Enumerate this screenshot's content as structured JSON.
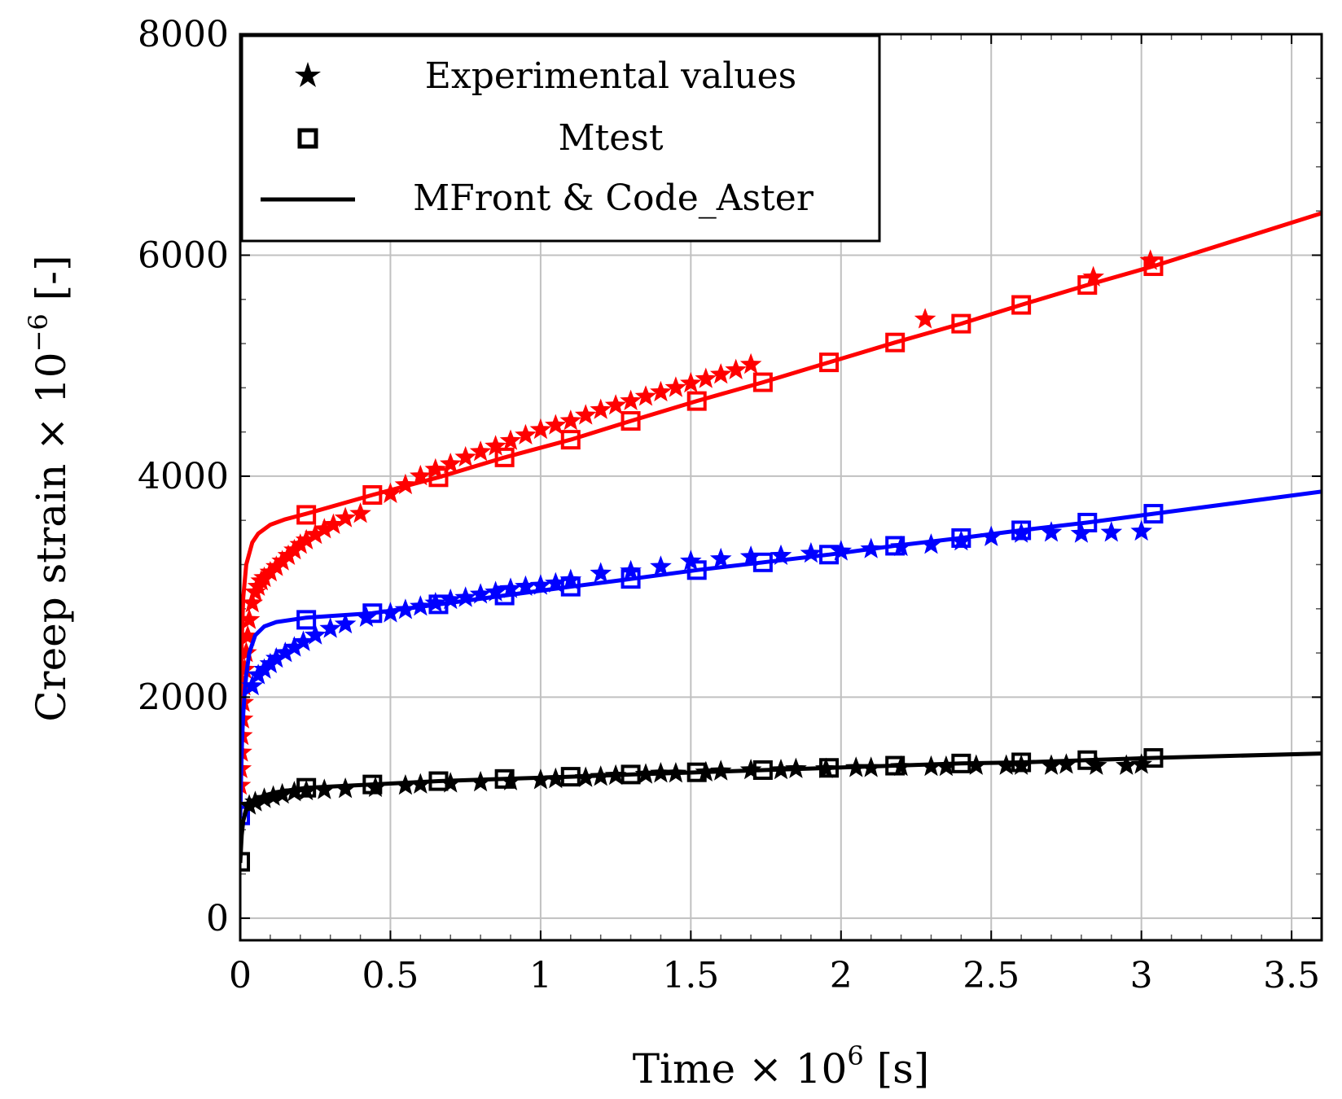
{
  "chart_data": {
    "type": "line",
    "title": "",
    "xlabel_parts": {
      "main": "Time × 10",
      "sup": "6",
      "unit": " [s]"
    },
    "ylabel_parts": {
      "main": "Creep strain × 10",
      "sup": "−6",
      "unit": " [-]"
    },
    "xlim": [
      0,
      3.6
    ],
    "ylim": [
      -200,
      8000
    ],
    "x_ticks": [
      0,
      0.5,
      1,
      1.5,
      2,
      2.5,
      3,
      3.5
    ],
    "x_tick_labels": [
      "0",
      "0.5",
      "1",
      "1.5",
      "2",
      "2.5",
      "3",
      "3.5"
    ],
    "y_ticks": [
      0,
      2000,
      4000,
      6000,
      8000
    ],
    "y_tick_labels": [
      "0",
      "2000",
      "4000",
      "6000",
      "8000"
    ],
    "grid": true,
    "legend": {
      "placement": "top-left",
      "entries": [
        {
          "label": "Experimental values",
          "marker": "star"
        },
        {
          "label": "Mtest",
          "marker": "square"
        },
        {
          "label": "MFront & Code_Aster",
          "marker": "line"
        }
      ]
    },
    "colors": {
      "red": "#ff0000",
      "blue": "#0000ff",
      "black": "#000000"
    },
    "series": [
      {
        "name": "red",
        "color": "#ff0000",
        "model_curve": {
          "x": [
            0,
            0.005,
            0.01,
            0.02,
            0.04,
            0.06,
            0.1,
            0.15,
            0.22,
            0.44,
            0.66,
            0.88,
            1.1,
            1.3,
            1.52,
            1.74,
            1.96,
            2.18,
            2.4,
            2.6,
            2.82,
            3.04,
            3.6
          ],
          "y": [
            1000,
            2500,
            2900,
            3200,
            3400,
            3480,
            3560,
            3610,
            3660,
            3830,
            3990,
            4170,
            4330,
            4500,
            4680,
            4850,
            5030,
            5210,
            5380,
            5550,
            5730,
            5900,
            6380
          ]
        },
        "mtest": {
          "x": [
            0.22,
            0.44,
            0.66,
            0.88,
            1.1,
            1.3,
            1.52,
            1.74,
            1.96,
            2.18,
            2.4,
            2.6,
            2.82,
            3.04
          ],
          "y": [
            3650,
            3830,
            3990,
            4170,
            4330,
            4500,
            4680,
            4850,
            5030,
            5210,
            5380,
            5550,
            5730,
            5900
          ]
        },
        "experimental": {
          "x": [
            0.0,
            0.002,
            0.004,
            0.006,
            0.008,
            0.01,
            0.012,
            0.015,
            0.02,
            0.025,
            0.03,
            0.04,
            0.05,
            0.06,
            0.07,
            0.08,
            0.1,
            0.12,
            0.14,
            0.16,
            0.18,
            0.2,
            0.22,
            0.25,
            0.28,
            0.31,
            0.35,
            0.4,
            0.5,
            0.55,
            0.6,
            0.65,
            0.7,
            0.75,
            0.8,
            0.85,
            0.9,
            0.95,
            1.0,
            1.05,
            1.1,
            1.15,
            1.2,
            1.25,
            1.3,
            1.35,
            1.4,
            1.45,
            1.5,
            1.55,
            1.6,
            1.65,
            1.7,
            2.28,
            2.84,
            3.03
          ],
          "y": [
            1200,
            1350,
            1500,
            1650,
            1800,
            1950,
            2100,
            2250,
            2400,
            2550,
            2700,
            2850,
            2950,
            3000,
            3050,
            3080,
            3130,
            3180,
            3230,
            3280,
            3330,
            3380,
            3420,
            3470,
            3520,
            3560,
            3620,
            3660,
            3840,
            3920,
            4000,
            4060,
            4110,
            4170,
            4220,
            4270,
            4320,
            4370,
            4420,
            4460,
            4500,
            4550,
            4600,
            4640,
            4680,
            4720,
            4760,
            4800,
            4840,
            4880,
            4920,
            4960,
            5010,
            5420,
            5800,
            5950
          ]
        }
      },
      {
        "name": "blue",
        "color": "#0000ff",
        "model_curve": {
          "x": [
            0,
            0.003,
            0.006,
            0.01,
            0.015,
            0.02,
            0.03,
            0.05,
            0.08,
            0.12,
            0.22,
            0.44,
            0.66,
            0.88,
            1.1,
            1.3,
            1.52,
            1.74,
            1.96,
            2.18,
            2.4,
            2.6,
            2.82,
            3.04,
            3.6
          ],
          "y": [
            900,
            1300,
            1600,
            1850,
            2050,
            2200,
            2400,
            2560,
            2640,
            2680,
            2720,
            2760,
            2840,
            2920,
            3000,
            3070,
            3150,
            3220,
            3290,
            3370,
            3440,
            3510,
            3580,
            3660,
            3860
          ]
        },
        "mtest": {
          "x": [
            0.0,
            0.22,
            0.44,
            0.66,
            0.88,
            1.1,
            1.3,
            1.52,
            1.74,
            1.96,
            2.18,
            2.4,
            2.6,
            2.82,
            3.04
          ],
          "y": [
            930,
            2700,
            2760,
            2840,
            2920,
            3000,
            3070,
            3150,
            3220,
            3290,
            3370,
            3440,
            3510,
            3580,
            3660
          ]
        },
        "experimental": {
          "x": [
            0.04,
            0.06,
            0.08,
            0.1,
            0.12,
            0.15,
            0.18,
            0.21,
            0.25,
            0.3,
            0.35,
            0.42,
            0.5,
            0.55,
            0.6,
            0.65,
            0.7,
            0.75,
            0.8,
            0.85,
            0.9,
            0.95,
            1.0,
            1.05,
            1.1,
            1.2,
            1.3,
            1.4,
            1.5,
            1.6,
            1.7,
            1.8,
            1.9,
            2.0,
            2.1,
            2.2,
            2.3,
            2.4,
            2.5,
            2.6,
            2.7,
            2.8,
            2.9,
            3.0
          ],
          "y": [
            2100,
            2200,
            2250,
            2300,
            2350,
            2400,
            2450,
            2500,
            2560,
            2620,
            2660,
            2720,
            2760,
            2790,
            2820,
            2850,
            2880,
            2900,
            2930,
            2950,
            2980,
            3000,
            3010,
            3030,
            3060,
            3120,
            3140,
            3180,
            3230,
            3250,
            3270,
            3280,
            3300,
            3320,
            3340,
            3360,
            3380,
            3410,
            3450,
            3480,
            3490,
            3480,
            3490,
            3500
          ]
        }
      },
      {
        "name": "black",
        "color": "#000000",
        "model_curve": {
          "x": [
            0,
            0.005,
            0.01,
            0.02,
            0.04,
            0.08,
            0.12,
            0.22,
            0.44,
            0.66,
            0.88,
            1.1,
            1.3,
            1.52,
            1.74,
            1.96,
            2.18,
            2.4,
            2.6,
            2.82,
            3.04,
            3.6
          ],
          "y": [
            500,
            750,
            880,
            980,
            1060,
            1110,
            1140,
            1180,
            1210,
            1240,
            1260,
            1280,
            1300,
            1320,
            1340,
            1360,
            1380,
            1400,
            1410,
            1430,
            1450,
            1490
          ]
        },
        "mtest": {
          "x": [
            0.0,
            0.22,
            0.44,
            0.66,
            0.88,
            1.1,
            1.3,
            1.52,
            1.74,
            1.96,
            2.18,
            2.4,
            2.6,
            2.82,
            3.04
          ],
          "y": [
            510,
            1180,
            1210,
            1240,
            1260,
            1280,
            1300,
            1320,
            1340,
            1360,
            1380,
            1400,
            1410,
            1430,
            1450
          ]
        },
        "experimental": {
          "x": [
            0.03,
            0.05,
            0.08,
            0.11,
            0.14,
            0.18,
            0.22,
            0.28,
            0.35,
            0.45,
            0.55,
            0.6,
            0.7,
            0.8,
            0.9,
            1.0,
            1.05,
            1.15,
            1.2,
            1.25,
            1.35,
            1.4,
            1.45,
            1.55,
            1.6,
            1.7,
            1.8,
            1.85,
            1.95,
            2.05,
            2.1,
            2.2,
            2.3,
            2.35,
            2.45,
            2.55,
            2.6,
            2.7,
            2.75,
            2.85,
            2.95,
            3.0
          ],
          "y": [
            1020,
            1050,
            1080,
            1100,
            1120,
            1140,
            1150,
            1160,
            1170,
            1180,
            1200,
            1210,
            1220,
            1230,
            1240,
            1250,
            1260,
            1270,
            1280,
            1290,
            1300,
            1310,
            1310,
            1320,
            1330,
            1340,
            1340,
            1350,
            1350,
            1360,
            1360,
            1370,
            1370,
            1370,
            1380,
            1380,
            1380,
            1380,
            1390,
            1380,
            1380,
            1390
          ]
        }
      }
    ]
  }
}
